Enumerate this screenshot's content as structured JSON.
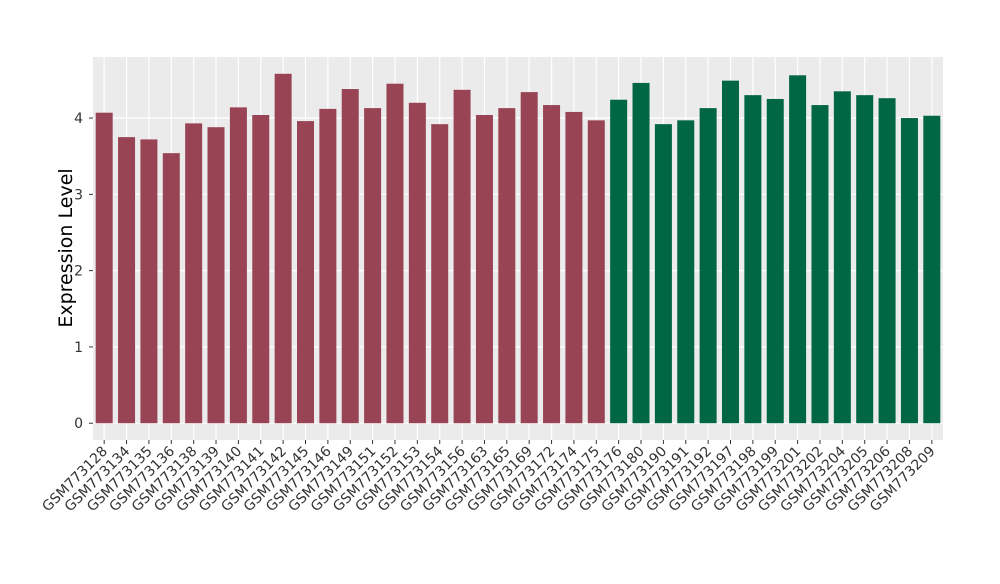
{
  "chart_data": {
    "type": "bar",
    "y_label": "Expression Level",
    "categories": [
      "GSM773128",
      "GSM773134",
      "GSM773135",
      "GSM773136",
      "GSM773138",
      "GSM773139",
      "GSM773140",
      "GSM773141",
      "GSM773142",
      "GSM773145",
      "GSM773146",
      "GSM773149",
      "GSM773151",
      "GSM773152",
      "GSM773153",
      "GSM773154",
      "GSM773156",
      "GSM773163",
      "GSM773165",
      "GSM773169",
      "GSM773172",
      "GSM773174",
      "GSM773175",
      "GSM773176",
      "GSM773180",
      "GSM773190",
      "GSM773191",
      "GSM773192",
      "GSM773197",
      "GSM773198",
      "GSM773199",
      "GSM773201",
      "GSM773202",
      "GSM773204",
      "GSM773205",
      "GSM773206",
      "GSM773208",
      "GSM773209"
    ],
    "values": [
      4.07,
      3.75,
      3.72,
      3.54,
      3.93,
      3.88,
      4.14,
      4.04,
      4.58,
      3.96,
      4.12,
      4.38,
      4.13,
      4.45,
      4.2,
      3.92,
      4.37,
      4.04,
      4.13,
      4.34,
      4.17,
      4.08,
      3.97,
      4.24,
      4.46,
      3.92,
      3.97,
      4.13,
      4.49,
      4.3,
      4.25,
      4.56,
      4.17,
      4.35,
      4.3,
      4.26,
      4.0,
      4.03
    ],
    "colors": [
      "#994455",
      "#994455",
      "#994455",
      "#994455",
      "#994455",
      "#994455",
      "#994455",
      "#994455",
      "#994455",
      "#994455",
      "#994455",
      "#994455",
      "#994455",
      "#994455",
      "#994455",
      "#994455",
      "#994455",
      "#994455",
      "#994455",
      "#994455",
      "#994455",
      "#994455",
      "#994455",
      "#006644",
      "#006644",
      "#006644",
      "#006644",
      "#006644",
      "#006644",
      "#006644",
      "#006644",
      "#006644",
      "#006644",
      "#006644",
      "#006644",
      "#006644",
      "#006644",
      "#006644"
    ],
    "ylim": [
      -0.22,
      4.8
    ],
    "yticks": [
      0,
      1,
      2,
      3,
      4
    ],
    "grid": true
  }
}
